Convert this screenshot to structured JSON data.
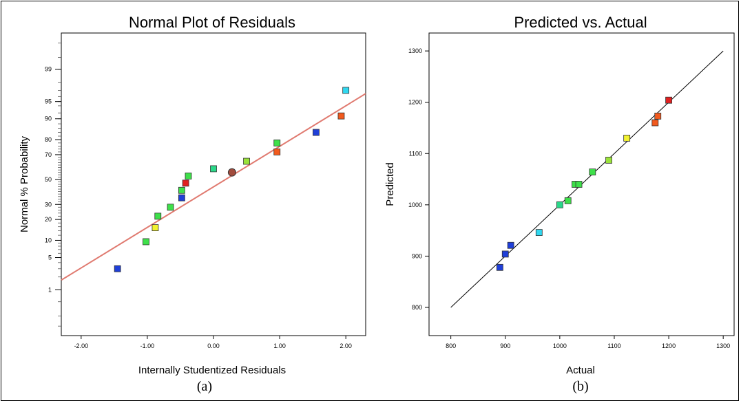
{
  "chart_data": [
    {
      "type": "scatter",
      "title": "Normal Plot of Residuals",
      "xlabel": "Internally Studentized Residuals",
      "ylabel": "Normal % Probability",
      "caption": "(a)",
      "y_scale": "normal-probability",
      "xlim": [
        -2.3,
        2.3
      ],
      "x_ticks": [
        "-2.00",
        "-1.00",
        "0.00",
        "1.00",
        "2.00"
      ],
      "y_ticks": [
        "1",
        "5",
        "10",
        "20",
        "30",
        "50",
        "70",
        "80",
        "90",
        "95",
        "99"
      ],
      "fit_line": {
        "x": [
          -2.3,
          2.3
        ],
        "y": [
          1.7,
          96.5
        ],
        "color": "#e07a70"
      },
      "points": [
        {
          "x": -1.45,
          "y": 3,
          "color": "#1f3fd8"
        },
        {
          "x": -1.02,
          "y": 9.5,
          "color": "#3ee04a"
        },
        {
          "x": -0.88,
          "y": 15.5,
          "color": "#f2f230"
        },
        {
          "x": -0.84,
          "y": 22,
          "color": "#3ee04a"
        },
        {
          "x": -0.65,
          "y": 28,
          "color": "#3ee04a"
        },
        {
          "x": -0.48,
          "y": 35,
          "color": "#1f3fd8"
        },
        {
          "x": -0.48,
          "y": 41,
          "color": "#3ee04a"
        },
        {
          "x": -0.42,
          "y": 47,
          "color": "#e02020"
        },
        {
          "x": -0.38,
          "y": 53,
          "color": "#3ee04a"
        },
        {
          "x": 0.0,
          "y": 59,
          "color": "#2ad889"
        },
        {
          "x": 0.28,
          "y": 56,
          "color": "#a24b3c",
          "shape": "circle"
        },
        {
          "x": 0.5,
          "y": 65,
          "color": "#9ae23a"
        },
        {
          "x": 0.96,
          "y": 72,
          "color": "#f25a1e"
        },
        {
          "x": 0.96,
          "y": 78,
          "color": "#3ee04a"
        },
        {
          "x": 1.55,
          "y": 84,
          "color": "#1f3fd8"
        },
        {
          "x": 1.93,
          "y": 91,
          "color": "#f25a1e"
        },
        {
          "x": 2.0,
          "y": 97,
          "color": "#30d8f0"
        }
      ]
    },
    {
      "type": "scatter",
      "title": "Predicted vs. Actual",
      "xlabel": "Actual",
      "ylabel": "Predicted",
      "caption": "(b)",
      "xlim": [
        760,
        1320
      ],
      "ylim": [
        745,
        1335
      ],
      "x_ticks": [
        "800",
        "900",
        "1000",
        "1100",
        "1200",
        "1300"
      ],
      "y_ticks": [
        "800",
        "900",
        "1000",
        "1100",
        "1200",
        "1300"
      ],
      "fit_line": {
        "x": [
          800,
          1300
        ],
        "y": [
          800,
          1300
        ],
        "color": "#000000"
      },
      "points": [
        {
          "x": 890,
          "y": 878,
          "color": "#1f3fd8"
        },
        {
          "x": 900,
          "y": 904,
          "color": "#1f3fd8"
        },
        {
          "x": 910,
          "y": 921,
          "color": "#1f3fd8"
        },
        {
          "x": 962,
          "y": 946,
          "color": "#30d8f0"
        },
        {
          "x": 1000,
          "y": 1000,
          "color": "#2ad889"
        },
        {
          "x": 1015,
          "y": 1008,
          "color": "#3ee04a"
        },
        {
          "x": 1028,
          "y": 1040,
          "color": "#3ee04a"
        },
        {
          "x": 1035,
          "y": 1040,
          "color": "#3ee04a"
        },
        {
          "x": 1060,
          "y": 1064,
          "color": "#3ee04a"
        },
        {
          "x": 1090,
          "y": 1087,
          "color": "#9ae23a"
        },
        {
          "x": 1123,
          "y": 1130,
          "color": "#f2f230"
        },
        {
          "x": 1175,
          "y": 1160,
          "color": "#f25a1e"
        },
        {
          "x": 1180,
          "y": 1173,
          "color": "#f25a1e"
        },
        {
          "x": 1200,
          "y": 1204,
          "color": "#e02020"
        }
      ]
    }
  ]
}
